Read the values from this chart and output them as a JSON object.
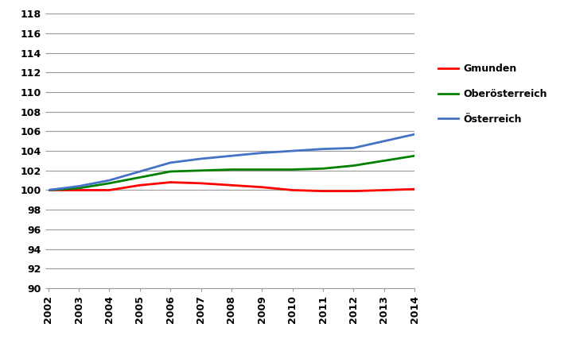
{
  "years": [
    2002,
    2003,
    2004,
    2005,
    2006,
    2007,
    2008,
    2009,
    2010,
    2011,
    2012,
    2013,
    2014
  ],
  "gmunden": [
    100.0,
    100.0,
    100.0,
    100.5,
    100.8,
    100.7,
    100.5,
    100.3,
    100.0,
    99.9,
    99.9,
    100.0,
    100.1
  ],
  "oberoesterreich": [
    100.0,
    100.2,
    100.7,
    101.3,
    101.9,
    102.0,
    102.1,
    102.1,
    102.1,
    102.2,
    102.5,
    103.0,
    103.5
  ],
  "oesterreich": [
    100.0,
    100.4,
    101.0,
    101.9,
    102.8,
    103.2,
    103.5,
    103.8,
    104.0,
    104.2,
    104.3,
    105.0,
    105.7
  ],
  "gmunden_color": "#ff0000",
  "oberoesterreich_color": "#008000",
  "oesterreich_color": "#4472c4",
  "ylim": [
    90,
    118
  ],
  "yticks": [
    90,
    92,
    94,
    96,
    98,
    100,
    102,
    104,
    106,
    108,
    110,
    112,
    114,
    116,
    118
  ],
  "legend_labels": [
    "Gmunden",
    "Oberösterreich",
    "Österreich"
  ],
  "line_width": 2.0,
  "background_color": "#ffffff",
  "grid_color": "#999999"
}
